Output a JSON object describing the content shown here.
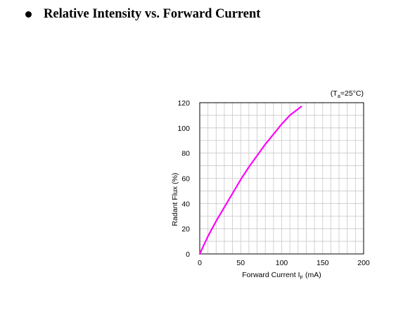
{
  "page": {
    "heading": "Relative Intensity vs. Forward Current"
  },
  "chart_data": {
    "type": "line",
    "title": "",
    "condition_text": "(Ta=25°C)",
    "xlabel": "Forward Current IF (mA)",
    "ylabel": "Radant Flux (%)",
    "xlim": [
      0,
      200
    ],
    "ylim": [
      0,
      120
    ],
    "xticks": [
      0,
      50,
      100,
      150,
      200
    ],
    "yticks": [
      0,
      20,
      40,
      60,
      80,
      100,
      120
    ],
    "grid": true,
    "line_color": "#ff00ff",
    "series": [
      {
        "x": [
          0,
          5,
          10,
          20,
          30,
          40,
          50,
          60,
          70,
          80,
          90,
          100,
          110,
          120,
          124
        ],
        "y": [
          0,
          7,
          14,
          26,
          37,
          48,
          59,
          69,
          78,
          87,
          95,
          103,
          110,
          115,
          117
        ]
      }
    ]
  }
}
